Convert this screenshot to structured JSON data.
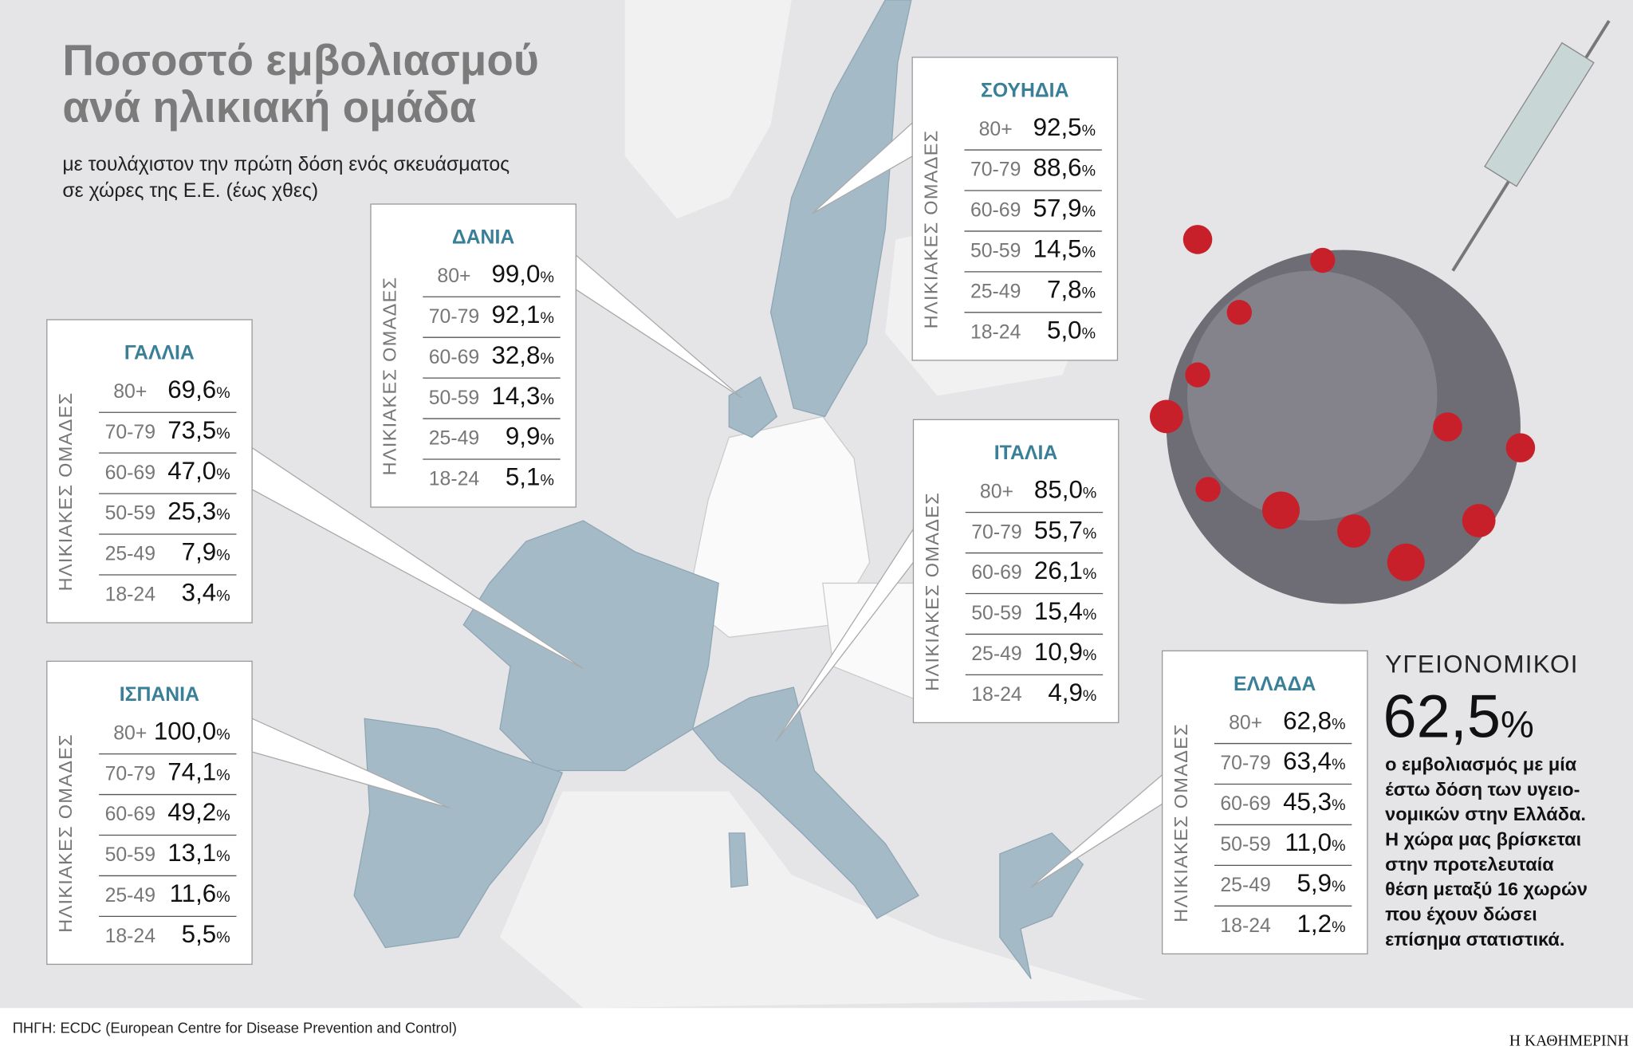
{
  "header": {
    "title_lines": [
      "Ποσοστό εμβολιασμού",
      "ανά ηλικιακή ομάδα"
    ],
    "subtitle_lines": [
      "με τουλάχιστον την πρώτη δόση ενός σκευάσματος",
      "σε χώρες της Ε.Ε. (έως χθες)"
    ]
  },
  "age_groups_label": "ΗΛΙΚΙΑΚΕΣ ΟΜΑΔΕΣ",
  "countries": [
    {
      "name": "ΣΟΥΗΔΙΑ",
      "rows": [
        {
          "age": "80+",
          "value": "92,5%"
        },
        {
          "age": "70-79",
          "value": "88,6%"
        },
        {
          "age": "60-69",
          "value": "57,9%"
        },
        {
          "age": "50-59",
          "value": "14,5%"
        },
        {
          "age": "25-49",
          "value": "7,8%"
        },
        {
          "age": "18-24",
          "value": "5,0%"
        }
      ]
    },
    {
      "name": "ΔΑΝΙΑ",
      "rows": [
        {
          "age": "80+",
          "value": "99,0%"
        },
        {
          "age": "70-79",
          "value": "92,1%"
        },
        {
          "age": "60-69",
          "value": "32,8%"
        },
        {
          "age": "50-59",
          "value": "14,3%"
        },
        {
          "age": "25-49",
          "value": "9,9%"
        },
        {
          "age": "18-24",
          "value": "5,1%"
        }
      ]
    },
    {
      "name": "ΓΑΛΛΙΑ",
      "rows": [
        {
          "age": "80+",
          "value": "69,6%"
        },
        {
          "age": "70-79",
          "value": "73,5%"
        },
        {
          "age": "60-69",
          "value": "47,0%"
        },
        {
          "age": "50-59",
          "value": "25,3%"
        },
        {
          "age": "25-49",
          "value": "7,9%"
        },
        {
          "age": "18-24",
          "value": "3,4%"
        }
      ]
    },
    {
      "name": "ΙΤΑΛΙΑ",
      "rows": [
        {
          "age": "80+",
          "value": "85,0%"
        },
        {
          "age": "70-79",
          "value": "55,7%"
        },
        {
          "age": "60-69",
          "value": "26,1%"
        },
        {
          "age": "50-59",
          "value": "15,4%"
        },
        {
          "age": "25-49",
          "value": "10,9%"
        },
        {
          "age": "18-24",
          "value": "4,9%"
        }
      ]
    },
    {
      "name": "ΙΣΠΑΝΙΑ",
      "rows": [
        {
          "age": "80+",
          "value": "100,0%"
        },
        {
          "age": "70-79",
          "value": "74,1%"
        },
        {
          "age": "60-69",
          "value": "49,2%"
        },
        {
          "age": "50-59",
          "value": "13,1%"
        },
        {
          "age": "25-49",
          "value": "11,6%"
        },
        {
          "age": "18-24",
          "value": "5,5%"
        }
      ]
    },
    {
      "name": "ΕΛΛΑΔΑ",
      "rows": [
        {
          "age": "80+",
          "value": "62,8%"
        },
        {
          "age": "70-79",
          "value": "63,4%"
        },
        {
          "age": "60-69",
          "value": "45,3%"
        },
        {
          "age": "50-59",
          "value": "11,0%"
        },
        {
          "age": "25-49",
          "value": "5,9%"
        },
        {
          "age": "18-24",
          "value": "1,2%"
        }
      ]
    }
  ],
  "health_workers": {
    "label": "ΥΓΕΙΟΝΟΜΙΚΟΙ",
    "value": "62,5%",
    "text_lines": [
      "ο εμβολιασμός με μία",
      "έστω δόση των υγειο-",
      "νομικών στην Ελλάδα.",
      "Η χώρα μας βρίσκεται",
      "στην προτελευταία",
      "θέση μεταξύ 16 χωρών",
      "που έχουν δώσει",
      "επίσημα στατιστικά."
    ]
  },
  "footer": {
    "source": "ΠΗΓΗ: ECDC (European Centre for Disease Prevention and Control)",
    "brand": "Η ΚΑΘΗΜΕΡΙΝΗ"
  }
}
